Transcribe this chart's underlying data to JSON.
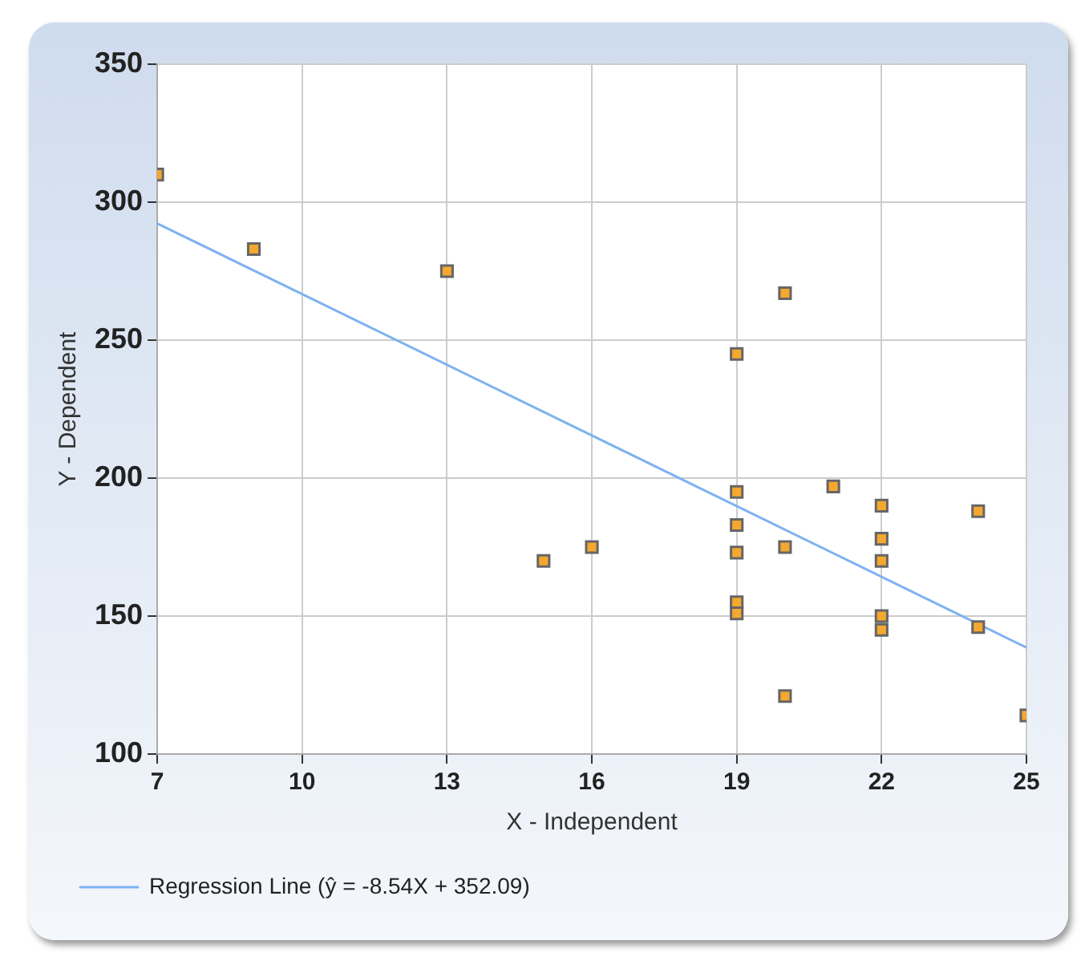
{
  "chart_data": {
    "type": "scatter",
    "xlabel": "X - Independent",
    "ylabel": "Y - Dependent",
    "xlim": [
      7,
      25
    ],
    "xticks": [
      7,
      10,
      13,
      16,
      19,
      22,
      25
    ],
    "ylim": [
      100,
      350
    ],
    "yticks": [
      100,
      150,
      200,
      250,
      300,
      350
    ],
    "grid": true,
    "legend": "bottom left",
    "marker": "square",
    "series": [
      {
        "color": "#f5a830",
        "x": [
          7,
          9,
          13,
          15,
          16,
          19,
          20,
          19,
          19,
          19,
          19,
          19,
          20,
          20,
          21,
          22,
          22,
          22,
          22,
          22,
          24,
          24,
          25
        ],
        "values": [
          310,
          283,
          275,
          170,
          175,
          245,
          267,
          195,
          183,
          173,
          155,
          151,
          175,
          121,
          197,
          190,
          178,
          170,
          150,
          145,
          188,
          146,
          114
        ]
      },
      {
        "type": "line",
        "name": "Regression Line (ŷ = -8.54X + 352.09)",
        "color": "#7fb2f0",
        "x": [
          7,
          25
        ],
        "values": [
          292.3,
          138.6
        ],
        "marker": "none"
      }
    ]
  }
}
